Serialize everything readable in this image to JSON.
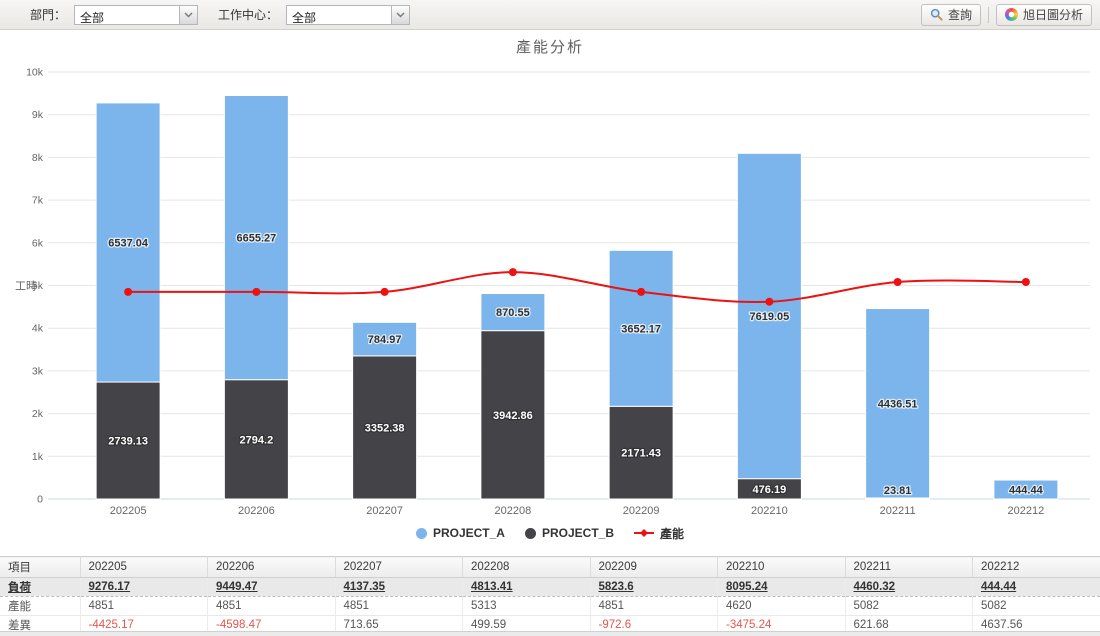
{
  "toolbar": {
    "dept_label": "部門：",
    "dept_value": "全部",
    "wc_label": "工作中心：",
    "wc_value": "全部",
    "search_button": "查詢",
    "sunburst_button": "旭日圖分析"
  },
  "chart_data": {
    "type": "bar",
    "subtype": "stacked-bars-with-line-overlay",
    "title": "產能分析",
    "ylabel": "工時",
    "xlabel": "",
    "categories": [
      "202205",
      "202206",
      "202207",
      "202208",
      "202209",
      "202210",
      "202211",
      "202212"
    ],
    "series": [
      {
        "name": "PROJECT_A",
        "type": "bar",
        "color": "#7cb5ec",
        "values": [
          6537.04,
          6655.27,
          784.97,
          870.55,
          3652.17,
          7619.05,
          4436.51,
          444.44
        ]
      },
      {
        "name": "PROJECT_B",
        "type": "bar",
        "color": "#434348",
        "values": [
          2739.13,
          2794.2,
          3352.38,
          3942.86,
          2171.43,
          476.19,
          23.81,
          0
        ]
      },
      {
        "name": "產能",
        "type": "line",
        "color": "#ed1111",
        "values": [
          4851,
          4851,
          4851,
          5313,
          4851,
          4620,
          5082,
          5082
        ]
      }
    ],
    "stacked": true,
    "ylim": [
      0,
      10000
    ],
    "yticks": [
      "0",
      "1k",
      "2k",
      "3k",
      "4k",
      "5k",
      "6k",
      "7k",
      "8k",
      "9k",
      "10k"
    ],
    "grid": true,
    "legend_position": "bottom"
  },
  "table": {
    "header": [
      "項目",
      "202205",
      "202206",
      "202207",
      "202208",
      "202209",
      "202210",
      "202211",
      "202212"
    ],
    "rows": [
      {
        "key": "load",
        "label": "負荷",
        "emphasis": true,
        "values": [
          "9276.17",
          "9449.47",
          "4137.35",
          "4813.41",
          "5823.6",
          "8095.24",
          "4460.32",
          "444.44"
        ]
      },
      {
        "key": "capacity",
        "label": "產能",
        "emphasis": false,
        "values": [
          "4851",
          "4851",
          "4851",
          "5313",
          "4851",
          "4620",
          "5082",
          "5082"
        ]
      },
      {
        "key": "diff",
        "label": "差異",
        "emphasis": false,
        "values": [
          "-4425.17",
          "-4598.47",
          "713.65",
          "499.59",
          "-972.6",
          "-3475.24",
          "621.68",
          "4637.56"
        ]
      }
    ]
  },
  "colors": {
    "project_a": "#7cb5ec",
    "project_b": "#434348",
    "capacity_line": "#ed1111",
    "negative_value": "#e2574c",
    "grid_line": "#e6e6e6",
    "axis_text": "#666666"
  }
}
